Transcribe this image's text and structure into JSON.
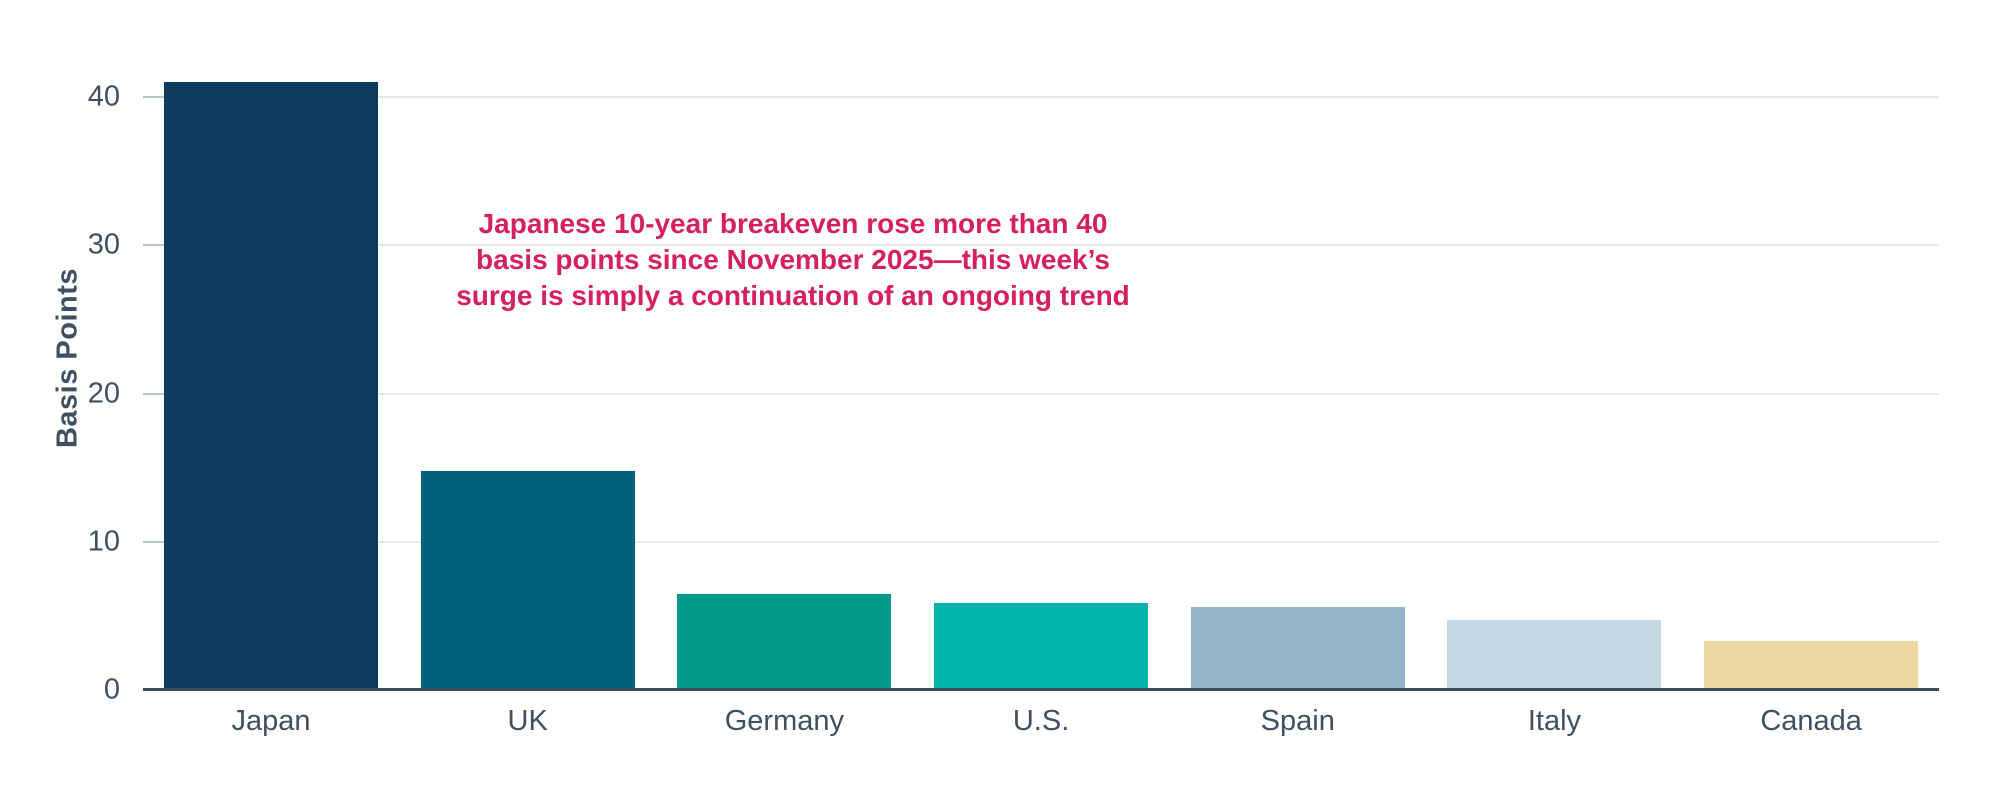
{
  "chart_data": {
    "type": "bar",
    "title": "",
    "xlabel": "",
    "ylabel": "Basis Points",
    "categories": [
      "Japan",
      "UK",
      "Germany",
      "U.S.",
      "Spain",
      "Italy",
      "Canada"
    ],
    "values": [
      41,
      14.8,
      6.5,
      5.9,
      5.6,
      4.7,
      3.3
    ],
    "bar_colors": [
      "#0d3a5e",
      "#03627b",
      "#049a8a",
      "#00b4ab",
      "#93b4c8",
      "#c5d7e2",
      "#ebd7a0"
    ],
    "yticks": [
      0,
      10,
      20,
      30,
      40
    ],
    "ylim": [
      0,
      42.5
    ],
    "grid": "horizontal",
    "legend_position": "none",
    "annotation": {
      "lines": [
        "Japanese 10-year breakeven rose more than 40",
        "basis points since November 2025—this week’s",
        "surge is simply a continuation of an ongoing trend"
      ]
    }
  },
  "colors": {
    "background": "#ffffff",
    "axis_text": "#3e5061",
    "gridline": "#e2eaf0",
    "tick_mark": "#b8c5cf",
    "axis_line": "#3a4b5c",
    "annotation_text": "#d6205e"
  }
}
